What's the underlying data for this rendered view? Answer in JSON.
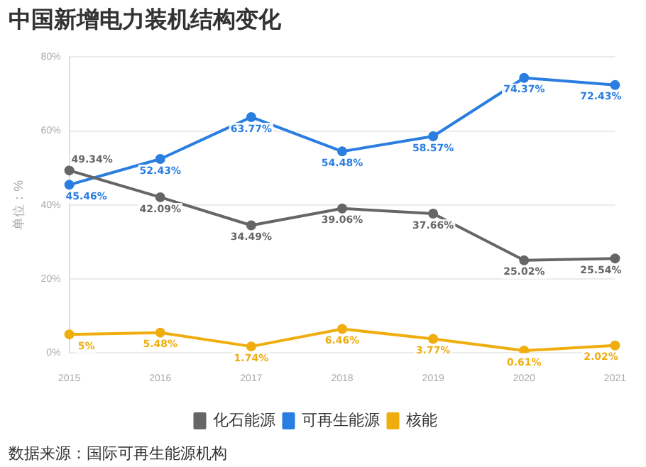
{
  "chart_data": {
    "type": "line",
    "title": "中国新增电力装机结构变化",
    "ylabel": "单位：%",
    "annotations": [
      "数据来源：国际可再生能源机构"
    ],
    "categories": [
      "2015",
      "2016",
      "2017",
      "2018",
      "2019",
      "2020",
      "2021"
    ],
    "series": [
      {
        "name": "化石能源",
        "color": "#666666",
        "values": [
          49.34,
          42.09,
          34.49,
          39.06,
          37.66,
          25.02,
          25.54
        ],
        "value_labels": [
          "49.34%",
          "42.09%",
          "34.49%",
          "39.06%",
          "37.66%",
          "25.02%",
          "25.54%"
        ]
      },
      {
        "name": "可再生能源",
        "color": "#2a7de1",
        "values": [
          45.46,
          52.43,
          63.77,
          54.48,
          58.57,
          74.37,
          72.43
        ],
        "value_labels": [
          "45.46%",
          "52.43%",
          "63.77%",
          "54.48%",
          "58.57%",
          "74.37%",
          "72.43%"
        ]
      },
      {
        "name": "核能",
        "color": "#f0ad0e",
        "values": [
          5,
          5.48,
          1.74,
          6.46,
          3.77,
          0.61,
          2.02
        ],
        "value_labels": [
          "5%",
          "5.48%",
          "1.74%",
          "6.46%",
          "3.77%",
          "0.61%",
          "2.02%"
        ]
      }
    ],
    "ylim": [
      0,
      80
    ],
    "yticks": [
      {
        "value": 0,
        "label": "0%"
      },
      {
        "value": 20,
        "label": "20%"
      },
      {
        "value": 40,
        "label": "40%"
      },
      {
        "value": 60,
        "label": "60%"
      },
      {
        "value": 80,
        "label": "80%"
      }
    ],
    "grid": "y",
    "legend": "bottom",
    "marker": "circle",
    "line_style": "solid"
  }
}
